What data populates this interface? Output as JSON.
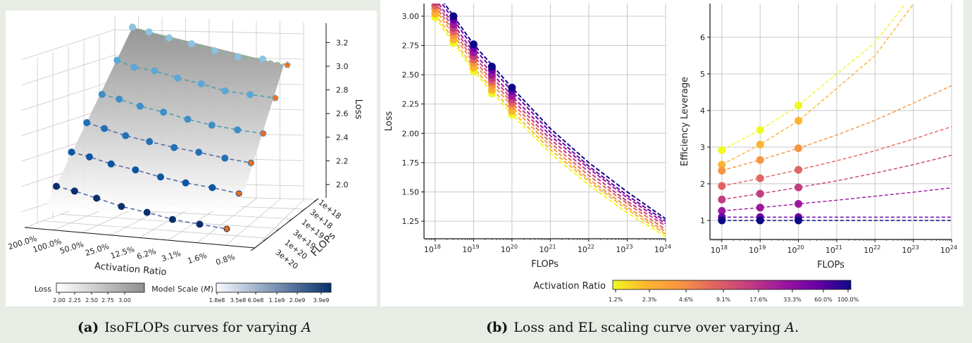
{
  "captions": {
    "a_label": "(a)",
    "a_text": "IsoFLOPs curves for varying ",
    "a_var": "A",
    "b_label": "(b)",
    "b_text": "Loss and EL scaling curve over varying ",
    "b_var": "A",
    "b_end": "."
  },
  "chart_data": [
    {
      "type": "scatter3d",
      "xlabel": "Activation Ratio",
      "ylabel": "FLOPs",
      "zlabel": "Loss",
      "x_ticks": [
        "200.0%",
        "100.0%",
        "50.0%",
        "25.0%",
        "12.5%",
        "6.2%",
        "3.1%",
        "1.6%",
        "0.8%"
      ],
      "y_ticks": [
        "1e+18",
        "3e+18",
        "1e+19",
        "3e+19",
        "1e+20",
        "3e+20"
      ],
      "z_ticks": [
        "2.0",
        "2.2",
        "2.4",
        "2.6",
        "2.8",
        "3.0",
        "3.2"
      ],
      "z_tick_values": [
        2.0,
        2.2,
        2.4,
        2.6,
        2.8,
        3.0,
        3.2
      ],
      "series": [
        {
          "flops": "1e+18",
          "color": "#8cc3e0",
          "loss": [
            3.33,
            3.29,
            3.24,
            3.19,
            3.13,
            3.08,
            3.06,
            3.01
          ]
        },
        {
          "flops": "3e+18",
          "color": "#5ba7d5",
          "loss": [
            3.17,
            3.11,
            3.08,
            3.02,
            2.97,
            2.91,
            2.88,
            2.85
          ]
        },
        {
          "flops": "1e+19",
          "color": "#3e8ec7",
          "loss": [
            3.0,
            2.96,
            2.9,
            2.85,
            2.79,
            2.74,
            2.7,
            2.67
          ]
        },
        {
          "flops": "3e+19",
          "color": "#2171b5",
          "loss": [
            2.88,
            2.83,
            2.77,
            2.72,
            2.67,
            2.63,
            2.58,
            2.54
          ]
        },
        {
          "flops": "1e+20",
          "color": "#0b56a0",
          "loss": [
            2.75,
            2.71,
            2.65,
            2.6,
            2.54,
            2.49,
            2.45,
            2.4
          ]
        },
        {
          "flops": "3e+20",
          "color": "#08306b",
          "loss": [
            2.58,
            2.54,
            2.48,
            2.41,
            2.36,
            2.3,
            2.26,
            2.22
          ]
        }
      ],
      "optimum_marker": "star",
      "optimum_color": "#f07018",
      "surface": "fitted loss surface",
      "colorbars": [
        {
          "label": "Loss",
          "ticks": [
            "2.00",
            "2.25",
            "2.50",
            "2.75",
            "3.00"
          ],
          "colors": [
            "#ffffff",
            "#8f8f8f"
          ]
        },
        {
          "label": "Model Scale (",
          "label_var": "M",
          "label_end": ")",
          "ticks": [
            "1.8e8",
            "3.5e8",
            "6.0e8",
            "1.1e9",
            "2.0e9",
            "3.9e9"
          ],
          "colors": [
            "#f7fbff",
            "#08306b"
          ]
        }
      ]
    },
    {
      "type": "line",
      "xlabel": "FLOPs",
      "ylabel": "Loss",
      "x_scale": "log",
      "xlim_exp": [
        17.71,
        24
      ],
      "ylim": [
        1.1,
        3.108
      ],
      "x_ticks_exp": [
        18,
        19,
        20,
        21,
        22,
        23,
        24
      ],
      "y_ticks": [
        "1.25",
        "1.50",
        "1.75",
        "2.00",
        "2.25",
        "2.50",
        "2.75",
        "3.00"
      ],
      "grid": true,
      "point_flops_exp": [
        18,
        18.477,
        19,
        19.477,
        20
      ],
      "fit_flops_exp": [
        18,
        19,
        20,
        21,
        22,
        23,
        24
      ],
      "series": [
        {
          "color": "#f0f921",
          "points": [
            2.99,
            2.77,
            2.53,
            2.34,
            2.16
          ],
          "fit": [
            2.99,
            2.53,
            2.16,
            1.83,
            1.56,
            1.32,
            1.12
          ]
        },
        {
          "color": "#fdb42f",
          "points": [
            3.02,
            2.8,
            2.56,
            2.37,
            2.19
          ],
          "fit": [
            3.02,
            2.56,
            2.19,
            1.86,
            1.59,
            1.35,
            1.14
          ]
        },
        {
          "color": "#f89540",
          "points": [
            3.06,
            2.84,
            2.6,
            2.41,
            2.23
          ],
          "fit": [
            3.06,
            2.6,
            2.23,
            1.89,
            1.61,
            1.37,
            1.16
          ]
        },
        {
          "color": "#e16462",
          "points": [
            3.09,
            2.87,
            2.63,
            2.44,
            2.26
          ],
          "fit": [
            3.09,
            2.63,
            2.26,
            1.92,
            1.64,
            1.4,
            1.18
          ]
        },
        {
          "color": "#c33d80",
          "points": [
            3.12,
            2.9,
            2.66,
            2.47,
            2.29
          ],
          "fit": [
            3.12,
            2.66,
            2.29,
            1.95,
            1.67,
            1.42,
            1.21
          ]
        },
        {
          "color": "#9c179e",
          "points": [
            3.15,
            2.93,
            2.69,
            2.5,
            2.32
          ],
          "fit": [
            3.15,
            2.69,
            2.32,
            1.98,
            1.7,
            1.45,
            1.23
          ]
        },
        {
          "color": "#6a00a8",
          "points": [
            3.19,
            2.97,
            2.73,
            2.54,
            2.36
          ],
          "fit": [
            3.19,
            2.73,
            2.36,
            2.01,
            1.72,
            1.47,
            1.25
          ]
        },
        {
          "color": "#0d0887",
          "points": [
            3.22,
            3.0,
            2.76,
            2.57,
            2.39
          ],
          "fit": [
            3.22,
            2.76,
            2.39,
            2.04,
            1.75,
            1.5,
            1.27
          ]
        }
      ]
    },
    {
      "type": "line",
      "xlabel": "FLOPs",
      "ylabel": "Efficiency Leverage",
      "x_scale": "log",
      "xlim_exp": [
        17.69,
        24
      ],
      "ylim": [
        0.48,
        6.92
      ],
      "x_ticks_exp": [
        18,
        19,
        20,
        21,
        22,
        23,
        24
      ],
      "y_ticks": [
        "1",
        "2",
        "3",
        "4",
        "5",
        "6"
      ],
      "grid": true,
      "point_flops_exp": [
        18,
        19,
        20
      ],
      "fit_flops_exp": [
        18,
        19,
        20,
        21,
        22,
        23,
        24
      ],
      "series": [
        {
          "color": "#f0f921",
          "points": [
            2.92,
            3.47,
            4.14
          ],
          "fit": [
            2.92,
            3.47,
            4.14,
            5.0,
            5.85,
            7.2,
            8.8
          ]
        },
        {
          "color": "#fdb42f",
          "points": [
            2.52,
            3.07,
            3.72
          ],
          "fit": [
            2.52,
            3.07,
            3.72,
            4.6,
            5.5,
            6.9,
            8.6
          ]
        },
        {
          "color": "#f89540",
          "points": [
            2.36,
            2.65,
            2.97
          ],
          "fit": [
            2.36,
            2.65,
            2.97,
            3.33,
            3.73,
            4.2,
            4.68
          ]
        },
        {
          "color": "#e16462",
          "points": [
            1.94,
            2.15,
            2.38
          ],
          "fit": [
            1.94,
            2.15,
            2.38,
            2.63,
            2.9,
            3.22,
            3.56
          ]
        },
        {
          "color": "#c33d80",
          "points": [
            1.57,
            1.73,
            1.9
          ],
          "fit": [
            1.57,
            1.73,
            1.9,
            2.08,
            2.29,
            2.52,
            2.78
          ]
        },
        {
          "color": "#9c179e",
          "points": [
            1.26,
            1.35,
            1.45
          ],
          "fit": [
            1.26,
            1.35,
            1.45,
            1.55,
            1.66,
            1.77,
            1.89
          ]
        },
        {
          "color": "#6a00a8",
          "points": [
            1.09,
            1.09,
            1.09
          ],
          "fit": [
            1.09,
            1.09,
            1.09,
            1.09,
            1.09,
            1.09,
            1.09
          ]
        },
        {
          "color": "#0d0887",
          "points": [
            1.0,
            1.0,
            1.0
          ],
          "fit": [
            1.0,
            1.0,
            1.0,
            1.0,
            1.0,
            1.0,
            1.0
          ]
        }
      ]
    }
  ],
  "shared_colorbar": {
    "label": "Activation Ratio",
    "ticks": [
      "1.2%",
      "2.3%",
      "4.6%",
      "9.1%",
      "17.6%",
      "33.3%",
      "60.0%",
      "100.0%"
    ],
    "colors": [
      "#f0f921",
      "#fdb42f",
      "#f89540",
      "#e16462",
      "#c33d80",
      "#9c179e",
      "#6a00a8",
      "#0d0887"
    ]
  }
}
